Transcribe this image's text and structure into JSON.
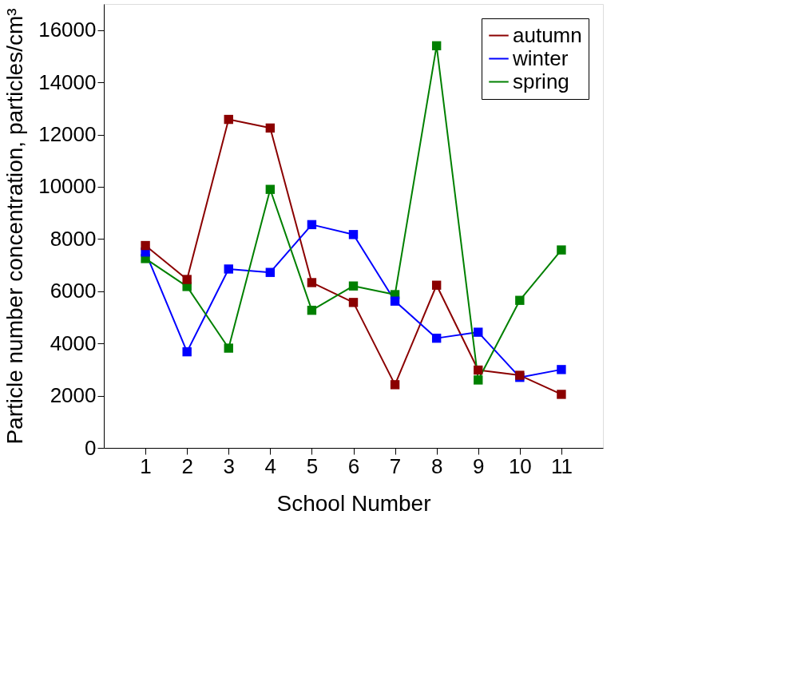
{
  "chart_data": {
    "type": "line",
    "xlabel": "School Number",
    "ylabel": "Particle number concentration, particles/cm³",
    "x": [
      1,
      2,
      3,
      4,
      5,
      6,
      7,
      8,
      9,
      10,
      11
    ],
    "xlim": [
      0,
      12
    ],
    "xticks": [
      1,
      2,
      3,
      4,
      5,
      6,
      7,
      8,
      9,
      10,
      11
    ],
    "ylim": [
      0,
      17000
    ],
    "yticks": [
      0,
      2000,
      4000,
      6000,
      8000,
      10000,
      12000,
      14000,
      16000
    ],
    "marker": "square",
    "line_style": "solid",
    "legend": "top right",
    "grid": false,
    "series": [
      {
        "name": "autumn",
        "color": "#8b0000",
        "values": [
          7750,
          6450,
          12580,
          12250,
          6330,
          5570,
          2420,
          6230,
          2980,
          2780,
          2050
        ]
      },
      {
        "name": "winter",
        "color": "#0000ff",
        "values": [
          7500,
          3680,
          6850,
          6720,
          8550,
          8170,
          5620,
          4200,
          4430,
          2700,
          3000
        ]
      },
      {
        "name": "spring",
        "color": "#008000",
        "values": [
          7250,
          6180,
          3820,
          9900,
          5270,
          6200,
          5870,
          15400,
          2600,
          5650,
          7580
        ]
      }
    ]
  }
}
